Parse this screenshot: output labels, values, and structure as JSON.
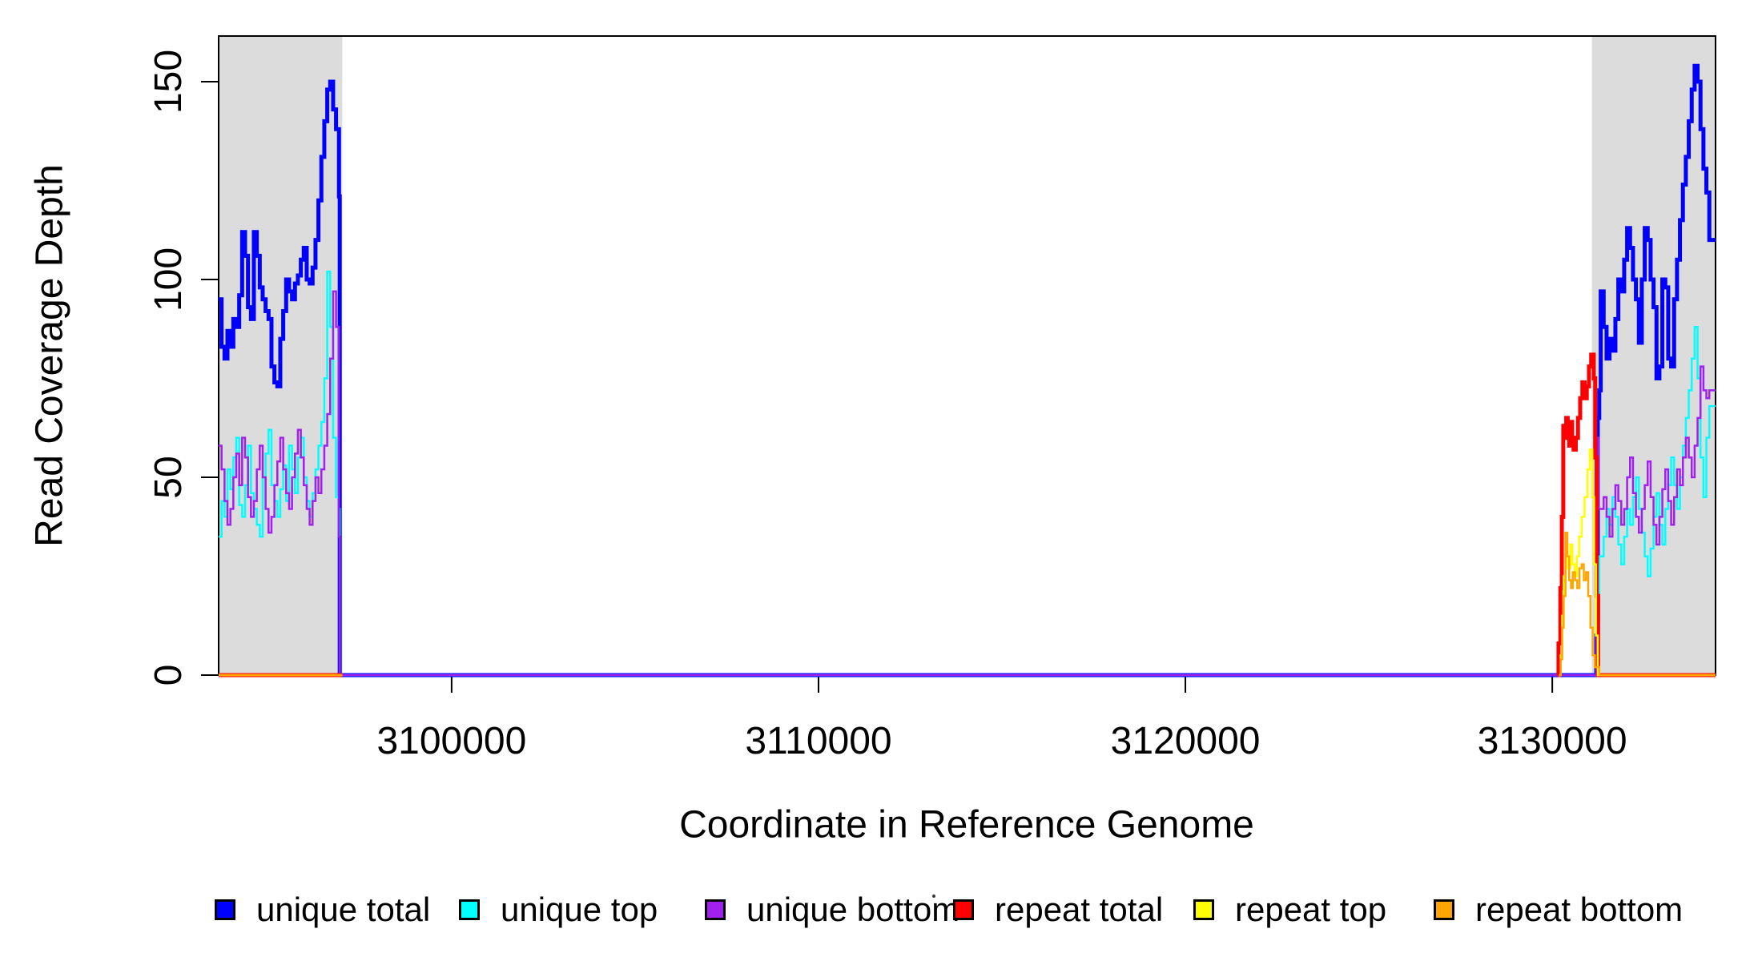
{
  "chart_data": {
    "type": "line",
    "subtype": "step-coverage-plot",
    "title": "",
    "xlabel": "Coordinate in Reference Genome",
    "ylabel": "Read Coverage Depth",
    "xlim": [
      3093650,
      3134450
    ],
    "ylim": [
      0,
      161
    ],
    "grid": false,
    "box": true,
    "background": "#FFFFFF",
    "xticks": {
      "values": [
        3100000,
        3110000,
        3120000,
        3130000
      ],
      "labels": [
        "3100000",
        "3110000",
        "3120000",
        "3130000"
      ]
    },
    "yticks": {
      "values": [
        0,
        50,
        100,
        150
      ],
      "labels": [
        "0",
        "50",
        "100",
        "150"
      ]
    },
    "shaded_regions": [
      {
        "name": "left-gray-band",
        "x0": 3093650,
        "x1": 3097020,
        "color": "#DCDCDC"
      },
      {
        "name": "right-gray-band",
        "x0": 3131080,
        "x1": 3134450,
        "color": "#DCDCDC"
      }
    ],
    "series": [
      {
        "name": "unique total",
        "slug": "unique-total",
        "color": "#0000FF",
        "line_width": 5,
        "segments": [
          [
            {
              "x0": 3093650,
              "dx": 80,
              "v": [
                95,
                83,
                80,
                87,
                83,
                90,
                88,
                96,
                112,
                106,
                93,
                90,
                112,
                106,
                98,
                95,
                92,
                90,
                78,
                74,
                73,
                85,
                92,
                100,
                97,
                95,
                99,
                101,
                105,
                108,
                100,
                99,
                103,
                110,
                120,
                131,
                140,
                148,
                150,
                143,
                138,
                121
              ]
            },
            {
              "points": [
                [
                  3096950,
                  0
                ],
                [
                  3131200,
                  10
                ],
                [
                  3131240,
                  65
                ],
                [
                  3131280,
                  72
                ],
                [
                  3131320,
                  97
                ]
              ]
            },
            {
              "x0": 3131400,
              "dx": 80,
              "v": [
                88,
                80,
                85,
                82,
                90,
                100,
                97,
                105,
                113,
                108,
                100,
                95,
                84,
                100,
                113,
                110,
                100,
                93,
                75,
                78,
                100,
                98,
                80,
                78,
                95,
                105,
                115,
                124,
                131,
                140,
                148,
                154,
                150,
                138,
                128,
                122,
                110
              ]
            },
            {
              "points": [
                [
                  3134450,
                  110
                ]
              ]
            }
          ]
        ]
      },
      {
        "name": "unique top",
        "slug": "unique-top",
        "color": "#00FFFF",
        "line_width": 2.5,
        "segments": [
          [
            {
              "x0": 3093650,
              "dx": 80,
              "v": [
                35,
                44,
                40,
                52,
                47,
                55,
                60,
                43,
                40,
                48,
                58,
                46,
                42,
                38,
                35,
                50,
                56,
                62,
                48,
                44,
                40,
                47,
                53,
                44,
                58,
                52,
                46,
                55,
                60,
                50,
                44,
                40,
                46,
                52,
                58,
                64,
                75,
                102,
                88,
                60,
                45,
                42
              ]
            },
            {
              "points": [
                [
                  3096950,
                  0
                ],
                [
                  3131240,
                  15
                ],
                [
                  3131280,
                  30
                ]
              ]
            },
            {
              "x0": 3131320,
              "dx": 80,
              "v": [
                30,
                35,
                42,
                38,
                45,
                40,
                33,
                28,
                35,
                42,
                38,
                45,
                50,
                42,
                36,
                30,
                25,
                32,
                40,
                46,
                38,
                33,
                42,
                48,
                55,
                48,
                42,
                50,
                58,
                65,
                72,
                80,
                88,
                75,
                55,
                45,
                60,
                68
              ]
            },
            {
              "points": [
                [
                  3134450,
                  68
                ]
              ]
            }
          ]
        ]
      },
      {
        "name": "unique bottom",
        "slug": "unique-bottom",
        "color": "#A020F0",
        "line_width": 2.5,
        "segments": [
          [
            {
              "x0": 3093650,
              "dx": 80,
              "v": [
                58,
                52,
                44,
                38,
                42,
                50,
                56,
                48,
                60,
                55,
                45,
                40,
                44,
                52,
                58,
                50,
                42,
                36,
                40,
                48,
                54,
                60,
                52,
                46,
                42,
                50,
                56,
                62,
                55,
                48,
                42,
                38,
                44,
                50,
                46,
                52,
                58,
                66,
                80,
                97,
                88,
                35
              ]
            },
            {
              "points": [
                [
                  3096950,
                  0
                ],
                [
                  3131200,
                  60
                ],
                [
                  3131260,
                  42
                ]
              ]
            },
            {
              "x0": 3131320,
              "dx": 80,
              "v": [
                42,
                45,
                40,
                35,
                42,
                48,
                44,
                38,
                42,
                50,
                55,
                46,
                40,
                36,
                42,
                48,
                54,
                45,
                38,
                33,
                40,
                47,
                52,
                44,
                38,
                45,
                52,
                48,
                55,
                60,
                55,
                50,
                58,
                65,
                78,
                72,
                70,
                72
              ]
            },
            {
              "points": [
                [
                  3134450,
                  72
                ]
              ]
            }
          ]
        ]
      },
      {
        "name": "repeat total",
        "slug": "repeat-total",
        "color": "#FF0000",
        "line_width": 5,
        "segments": [
          [
            {
              "points": [
                [
                  3093650,
                  0
                ],
                [
                  3097020,
                  0
                ]
              ]
            }
          ],
          [
            {
              "points": [
                [
                  3130150,
                  0
                ],
                [
                  3130170,
                  8
                ],
                [
                  3130220,
                  22
                ],
                [
                  3130260,
                  40
                ],
                [
                  3130300,
                  63
                ],
                [
                  3130340,
                  60
                ],
                [
                  3130380,
                  65
                ],
                [
                  3130420,
                  62
                ],
                [
                  3130460,
                  58
                ],
                [
                  3130500,
                  64
                ],
                [
                  3130540,
                  60
                ],
                [
                  3130580,
                  57
                ],
                [
                  3130640,
                  60
                ],
                [
                  3130700,
                  65
                ],
                [
                  3130760,
                  70
                ],
                [
                  3130820,
                  74
                ],
                [
                  3130880,
                  70
                ],
                [
                  3130940,
                  73
                ],
                [
                  3131000,
                  78
                ],
                [
                  3131060,
                  81
                ],
                [
                  3131130,
                  75
                ],
                [
                  3131170,
                  55
                ],
                [
                  3131210,
                  20
                ],
                [
                  3131250,
                  0
                ],
                [
                  3134450,
                  0
                ]
              ]
            }
          ]
        ]
      },
      {
        "name": "repeat top",
        "slug": "repeat-top",
        "color": "#FFFF00",
        "line_width": 2.5,
        "segments": [
          [
            {
              "points": [
                [
                  3093650,
                  0
                ],
                [
                  3097020,
                  0
                ]
              ]
            }
          ],
          [
            {
              "points": [
                [
                  3130180,
                  0
                ],
                [
                  3130230,
                  5
                ],
                [
                  3130270,
                  15
                ],
                [
                  3130310,
                  25
                ],
                [
                  3130370,
                  30
                ],
                [
                  3130430,
                  27
                ],
                [
                  3130490,
                  33
                ],
                [
                  3130550,
                  28
                ],
                [
                  3130610,
                  25
                ],
                [
                  3130670,
                  30
                ],
                [
                  3130730,
                  35
                ],
                [
                  3130800,
                  40
                ],
                [
                  3130880,
                  45
                ],
                [
                  3130960,
                  52
                ],
                [
                  3131020,
                  57
                ],
                [
                  3131090,
                  45
                ],
                [
                  3131140,
                  28
                ],
                [
                  3131190,
                  10
                ],
                [
                  3131240,
                  0
                ],
                [
                  3134450,
                  0
                ]
              ]
            }
          ]
        ]
      },
      {
        "name": "repeat bottom",
        "slug": "repeat-bottom",
        "color": "#FFA500",
        "line_width": 2.5,
        "segments": [
          [
            {
              "points": [
                [
                  3093650,
                  0
                ],
                [
                  3097020,
                  0
                ]
              ]
            }
          ],
          [
            {
              "points": [
                [
                  3130180,
                  0
                ],
                [
                  3130230,
                  4
                ],
                [
                  3130270,
                  12
                ],
                [
                  3130310,
                  20
                ],
                [
                  3130360,
                  36
                ],
                [
                  3130410,
                  30
                ],
                [
                  3130460,
                  24
                ],
                [
                  3130510,
                  22
                ],
                [
                  3130560,
                  26
                ],
                [
                  3130620,
                  24
                ],
                [
                  3130680,
                  22
                ],
                [
                  3130740,
                  27
                ],
                [
                  3130800,
                  28
                ],
                [
                  3130860,
                  24
                ],
                [
                  3130920,
                  26
                ],
                [
                  3130980,
                  20
                ],
                [
                  3131040,
                  12
                ],
                [
                  3131100,
                  5
                ],
                [
                  3131160,
                  2
                ],
                [
                  3131280,
                  0
                ],
                [
                  3134450,
                  0
                ]
              ]
            }
          ]
        ]
      }
    ],
    "legend": {
      "position": "bottom",
      "items": [
        {
          "label": "unique total",
          "color": "#0000FF"
        },
        {
          "label": "unique top",
          "color": "#00FFFF"
        },
        {
          "label": "unique bottom",
          "color": "#A020F0"
        },
        {
          "label": "repeat total",
          "color": "#FF0000"
        },
        {
          "label": "repeat top",
          "color": "#FFFF00"
        },
        {
          "label": "repeat bottom",
          "color": "#FFA500"
        }
      ]
    },
    "annotations": [
      {
        "type": "stray-dot",
        "color": "#3a3a3a"
      }
    ]
  }
}
